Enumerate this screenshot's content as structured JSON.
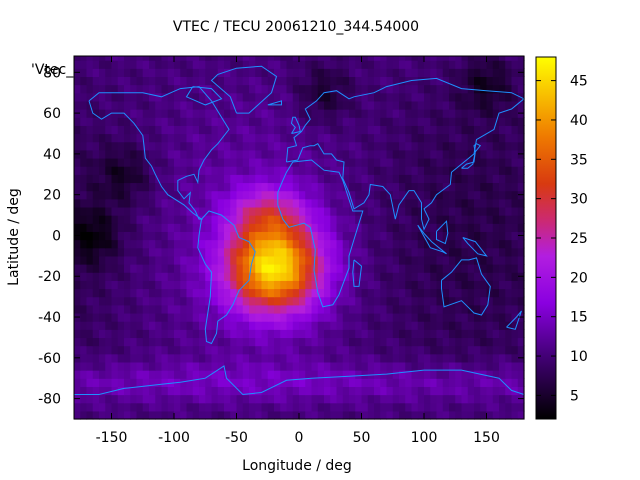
{
  "chart_data": {
    "type": "heatmap",
    "title": "VTEC / TECU 20061210_344.54000",
    "xlabel": "Longitude / deg",
    "ylabel": "Latitude / deg",
    "series_label": "'Vtec_",
    "xlim": [
      -180,
      180
    ],
    "ylim": [
      -90,
      88
    ],
    "x_ticks": [
      -150,
      -100,
      -50,
      0,
      50,
      100,
      150
    ],
    "y_ticks": [
      -80,
      -60,
      -40,
      -20,
      0,
      20,
      40,
      60,
      80
    ],
    "colorbar": {
      "range": [
        2,
        48
      ],
      "ticks": [
        5,
        10,
        15,
        20,
        25,
        30,
        35,
        40,
        45
      ],
      "palette": "black-purple-red-orange-yellow"
    },
    "field_features": {
      "background_vtec": 10,
      "anomaly_peak": {
        "lon": -20,
        "lat": -15,
        "value": 44
      },
      "anomaly_extent_lon": [
        -80,
        40
      ],
      "anomaly_extent_lat": [
        -45,
        22
      ],
      "low_regions": [
        {
          "lon": -165,
          "lat": 0,
          "value": 4
        },
        {
          "lon": -140,
          "lat": 30,
          "value": 5
        },
        {
          "lon": 20,
          "lat": 70,
          "value": 5
        },
        {
          "lon": 150,
          "lat": 75,
          "value": 5
        }
      ]
    },
    "overlay": "coastlines"
  },
  "colors": {
    "coastline": "#1e90ff",
    "axes": "#000000",
    "background": "#ffffff"
  }
}
